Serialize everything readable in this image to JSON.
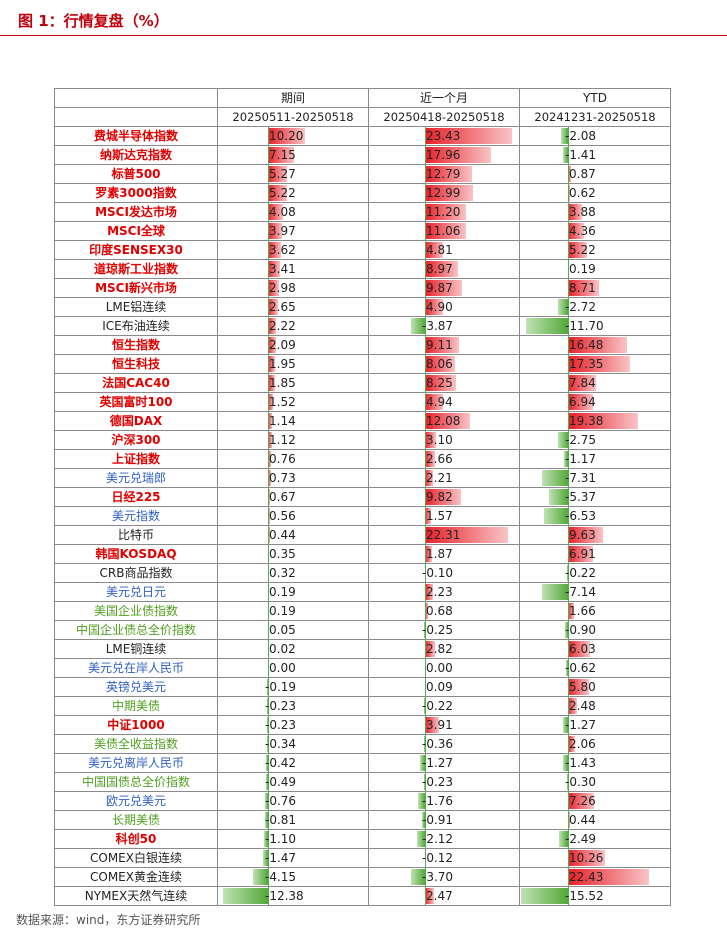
{
  "figure": {
    "title": "图 1：行情复盘（%）"
  },
  "source": "数据来源：wind，东方证券研究所",
  "columns": [
    {
      "label": "期间",
      "range": "20250511-20250518"
    },
    {
      "label": "近一个月",
      "range": "20250418-20250518"
    },
    {
      "label": "YTD",
      "range": "20241231-20250518"
    }
  ],
  "colors": {
    "positive": "#e8202a",
    "negative": "#53a838",
    "title": "#c0000c",
    "red_text": "#e00000",
    "blue_text": "#3060c0",
    "green_text": "#50a020"
  },
  "rows": [
    {
      "name": "费城半导体指数",
      "style": "red",
      "values": [
        10.2,
        23.43,
        -2.08
      ],
      "labels": [
        "10.20",
        "23.43",
        "-2.08"
      ]
    },
    {
      "name": "纳斯达克指数",
      "style": "red",
      "values": [
        7.15,
        17.96,
        -1.41
      ],
      "labels": [
        "7.15",
        "17.96",
        "-1.41"
      ]
    },
    {
      "name": "标普500",
      "style": "red",
      "values": [
        5.27,
        12.79,
        0.87
      ],
      "labels": [
        "5.27",
        "12.79",
        "0.87"
      ]
    },
    {
      "name": "罗素3000指数",
      "style": "red",
      "values": [
        5.22,
        12.99,
        0.62
      ],
      "labels": [
        "5.22",
        "12.99",
        "0.62"
      ]
    },
    {
      "name": "MSCI发达市场",
      "style": "red",
      "values": [
        4.08,
        11.2,
        3.88
      ],
      "labels": [
        "4.08",
        "11.20",
        "3.88"
      ]
    },
    {
      "name": "MSCI全球",
      "style": "red",
      "values": [
        3.97,
        11.06,
        4.36
      ],
      "labels": [
        "3.97",
        "11.06",
        "4.36"
      ]
    },
    {
      "name": "印度SENSEX30",
      "style": "red",
      "values": [
        3.62,
        4.81,
        5.22
      ],
      "labels": [
        "3.62",
        "4.81",
        "5.22"
      ]
    },
    {
      "name": "道琼斯工业指数",
      "style": "red",
      "values": [
        3.41,
        8.97,
        0.19
      ],
      "labels": [
        "3.41",
        "8.97",
        "0.19"
      ]
    },
    {
      "name": "MSCI新兴市场",
      "style": "red",
      "values": [
        2.98,
        9.87,
        8.71
      ],
      "labels": [
        "2.98",
        "9.87",
        "8.71"
      ]
    },
    {
      "name": "LME铝连续",
      "style": "black",
      "values": [
        2.65,
        4.9,
        -2.72
      ],
      "labels": [
        "2.65",
        "4.90",
        "-2.72"
      ]
    },
    {
      "name": "ICE布油连续",
      "style": "black",
      "values": [
        2.22,
        -3.87,
        -11.7
      ],
      "labels": [
        "2.22",
        "-3.87",
        "-11.70"
      ]
    },
    {
      "name": "恒生指数",
      "style": "red",
      "values": [
        2.09,
        9.11,
        16.48
      ],
      "labels": [
        "2.09",
        "9.11",
        "16.48"
      ]
    },
    {
      "name": "恒生科技",
      "style": "red",
      "values": [
        1.95,
        8.06,
        17.35
      ],
      "labels": [
        "1.95",
        "8.06",
        "17.35"
      ]
    },
    {
      "name": "法国CAC40",
      "style": "red",
      "values": [
        1.85,
        8.25,
        7.84
      ],
      "labels": [
        "1.85",
        "8.25",
        "7.84"
      ]
    },
    {
      "name": "英国富时100",
      "style": "red",
      "values": [
        1.52,
        4.94,
        6.94
      ],
      "labels": [
        "1.52",
        "4.94",
        "6.94"
      ]
    },
    {
      "name": "德国DAX",
      "style": "red",
      "values": [
        1.14,
        12.08,
        19.38
      ],
      "labels": [
        "1.14",
        "12.08",
        "19.38"
      ]
    },
    {
      "name": "沪深300",
      "style": "red",
      "values": [
        1.12,
        3.1,
        -2.75
      ],
      "labels": [
        "1.12",
        "3.10",
        "-2.75"
      ]
    },
    {
      "name": "上证指数",
      "style": "red",
      "values": [
        0.76,
        2.66,
        -1.17
      ],
      "labels": [
        "0.76",
        "2.66",
        "-1.17"
      ]
    },
    {
      "name": "美元兑瑞郎",
      "style": "blue",
      "values": [
        0.73,
        2.21,
        -7.31
      ],
      "labels": [
        "0.73",
        "2.21",
        "-7.31"
      ]
    },
    {
      "name": "日经225",
      "style": "red",
      "values": [
        0.67,
        9.82,
        -5.37
      ],
      "labels": [
        "0.67",
        "9.82",
        "-5.37"
      ]
    },
    {
      "name": "美元指数",
      "style": "blue",
      "values": [
        0.56,
        1.57,
        -6.53
      ],
      "labels": [
        "0.56",
        "1.57",
        "-6.53"
      ]
    },
    {
      "name": "比特币",
      "style": "black",
      "values": [
        0.44,
        22.31,
        9.63
      ],
      "labels": [
        "0.44",
        "22.31",
        "9.63"
      ]
    },
    {
      "name": "韩国KOSDAQ",
      "style": "red",
      "values": [
        0.35,
        1.87,
        6.91
      ],
      "labels": [
        "0.35",
        "1.87",
        "6.91"
      ]
    },
    {
      "name": "CRB商品指数",
      "style": "black",
      "values": [
        0.32,
        -0.1,
        -0.22
      ],
      "labels": [
        "0.32",
        "-0.10",
        "-0.22"
      ]
    },
    {
      "name": "美元兑日元",
      "style": "blue",
      "values": [
        0.19,
        2.23,
        -7.14
      ],
      "labels": [
        "0.19",
        "2.23",
        "-7.14"
      ]
    },
    {
      "name": "美国企业债指数",
      "style": "green",
      "values": [
        0.19,
        0.68,
        1.66
      ],
      "labels": [
        "0.19",
        "0.68",
        "1.66"
      ]
    },
    {
      "name": "中国企业债总全价指数",
      "style": "green",
      "values": [
        0.05,
        -0.25,
        -0.9
      ],
      "labels": [
        "0.05",
        "-0.25",
        "-0.90"
      ]
    },
    {
      "name": "LME铜连续",
      "style": "black",
      "values": [
        0.02,
        2.82,
        6.03
      ],
      "labels": [
        "0.02",
        "2.82",
        "6.03"
      ]
    },
    {
      "name": "美元兑在岸人民币",
      "style": "blue",
      "values": [
        0.0,
        0.0,
        -0.62
      ],
      "labels": [
        "0.00",
        "0.00",
        "-0.62"
      ]
    },
    {
      "name": "英镑兑美元",
      "style": "blue",
      "values": [
        -0.19,
        0.09,
        5.8
      ],
      "labels": [
        "-0.19",
        "0.09",
        "5.80"
      ]
    },
    {
      "name": "中期美债",
      "style": "green",
      "values": [
        -0.23,
        -0.22,
        2.48
      ],
      "labels": [
        "-0.23",
        "-0.22",
        "2.48"
      ]
    },
    {
      "name": "中证1000",
      "style": "red",
      "values": [
        -0.23,
        3.91,
        -1.27
      ],
      "labels": [
        "-0.23",
        "3.91",
        "-1.27"
      ]
    },
    {
      "name": "美债全收益指数",
      "style": "green",
      "values": [
        -0.34,
        -0.36,
        2.06
      ],
      "labels": [
        "-0.34",
        "-0.36",
        "2.06"
      ]
    },
    {
      "name": "美元兑离岸人民币",
      "style": "blue",
      "values": [
        -0.42,
        -1.27,
        -1.43
      ],
      "labels": [
        "-0.42",
        "-1.27",
        "-1.43"
      ]
    },
    {
      "name": "中国国债总全价指数",
      "style": "green",
      "values": [
        -0.49,
        -0.23,
        -0.3
      ],
      "labels": [
        "-0.49",
        "-0.23",
        "-0.30"
      ]
    },
    {
      "name": "欧元兑美元",
      "style": "blue",
      "values": [
        -0.76,
        -1.76,
        7.26
      ],
      "labels": [
        "-0.76",
        "-1.76",
        "7.26"
      ]
    },
    {
      "name": "长期美债",
      "style": "green",
      "values": [
        -0.81,
        -0.91,
        0.44
      ],
      "labels": [
        "-0.81",
        "-0.91",
        "0.44"
      ]
    },
    {
      "name": "科创50",
      "style": "red",
      "values": [
        -1.1,
        -2.12,
        -2.49
      ],
      "labels": [
        "-1.10",
        "-2.12",
        "-2.49"
      ]
    },
    {
      "name": "COMEX白银连续",
      "style": "black",
      "values": [
        -1.47,
        -0.12,
        10.26
      ],
      "labels": [
        "-1.47",
        "-0.12",
        "10.26"
      ]
    },
    {
      "name": "COMEX黄金连续",
      "style": "black",
      "values": [
        -4.15,
        -3.7,
        22.43
      ],
      "labels": [
        "-4.15",
        "-3.70",
        "22.43"
      ]
    },
    {
      "name": "NYMEX天然气连续",
      "style": "black",
      "values": [
        -12.38,
        2.47,
        -15.52
      ],
      "labels": [
        "-12.38",
        "2.47",
        "-15.52"
      ]
    }
  ]
}
